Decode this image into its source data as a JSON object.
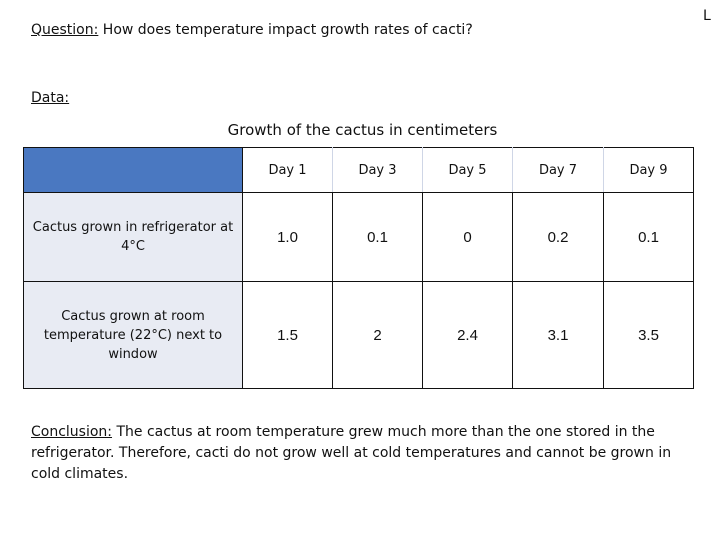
{
  "corner_mark": "L",
  "question": {
    "label": "Question:",
    "text": "How does temperature impact growth rates of cacti?"
  },
  "data_label": "Data:",
  "table": {
    "title": "Growth of the cactus in centimeters",
    "days": [
      "Day 1",
      "Day 3",
      "Day 5",
      "Day 7",
      "Day 9"
    ],
    "rows": [
      {
        "label": "Cactus grown in refrigerator at 4°C",
        "values": [
          "1.0",
          "0.1",
          "0",
          "0.2",
          "0.1"
        ]
      },
      {
        "label": "Cactus grown at room temperature (22°C) next to window",
        "values": [
          "1.5",
          "2",
          "2.4",
          "3.1",
          "3.5"
        ]
      }
    ]
  },
  "conclusion": {
    "label": "Conclusion:",
    "text": "The cactus at room temperature grew much more than the one stored in the refrigerator. Therefore, cacti do not grow well at cold temperatures and cannot be grown in cold climates."
  }
}
